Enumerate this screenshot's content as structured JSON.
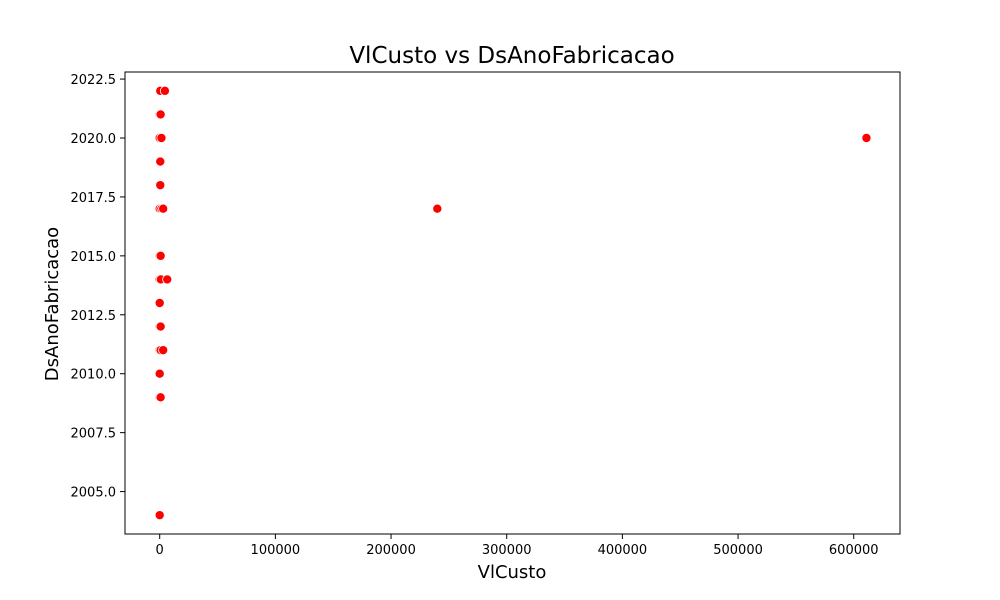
{
  "chart_data": {
    "type": "scatter",
    "title": "VlCusto vs DsAnoFabricacao",
    "xlabel": "VlCusto",
    "ylabel": "DsAnoFabricacao",
    "xlim": [
      -30000,
      640000
    ],
    "ylim": [
      2003.2,
      2022.8
    ],
    "xticks": [
      0,
      100000,
      200000,
      300000,
      400000,
      500000,
      600000
    ],
    "xtick_labels": [
      "0",
      "100000",
      "200000",
      "300000",
      "400000",
      "500000",
      "600000"
    ],
    "yticks": [
      2005.0,
      2007.5,
      2010.0,
      2012.5,
      2015.0,
      2017.5,
      2020.0,
      2022.5
    ],
    "ytick_labels": [
      "2005.0",
      "2007.5",
      "2010.0",
      "2012.5",
      "2015.0",
      "2017.5",
      "2020.0",
      "2022.5"
    ],
    "grid": false,
    "marker_color": "#ff0000",
    "marker_edge_color": "#ffffff",
    "points": [
      {
        "x": 0,
        "y": 2022
      },
      {
        "x": 500,
        "y": 2022
      },
      {
        "x": 4500,
        "y": 2022
      },
      {
        "x": 0,
        "y": 2021
      },
      {
        "x": 800,
        "y": 2021
      },
      {
        "x": 0,
        "y": 2020
      },
      {
        "x": 1500,
        "y": 2020
      },
      {
        "x": 0,
        "y": 2019
      },
      {
        "x": 500,
        "y": 2019
      },
      {
        "x": 0,
        "y": 2018
      },
      {
        "x": 500,
        "y": 2018
      },
      {
        "x": 0,
        "y": 2017
      },
      {
        "x": 1500,
        "y": 2017
      },
      {
        "x": 3000,
        "y": 2017
      },
      {
        "x": 0,
        "y": 2015
      },
      {
        "x": 800,
        "y": 2015
      },
      {
        "x": 0,
        "y": 2014
      },
      {
        "x": 1000,
        "y": 2014
      },
      {
        "x": 6500,
        "y": 2014
      },
      {
        "x": 0,
        "y": 2013
      },
      {
        "x": 0,
        "y": 2012
      },
      {
        "x": 800,
        "y": 2012
      },
      {
        "x": 0,
        "y": 2011
      },
      {
        "x": 800,
        "y": 2011
      },
      {
        "x": 3000,
        "y": 2011
      },
      {
        "x": 0,
        "y": 2010
      },
      {
        "x": 0,
        "y": 2009
      },
      {
        "x": 800,
        "y": 2009
      },
      {
        "x": 0,
        "y": 2004
      },
      {
        "x": 240000,
        "y": 2017
      },
      {
        "x": 611000,
        "y": 2020
      }
    ]
  }
}
